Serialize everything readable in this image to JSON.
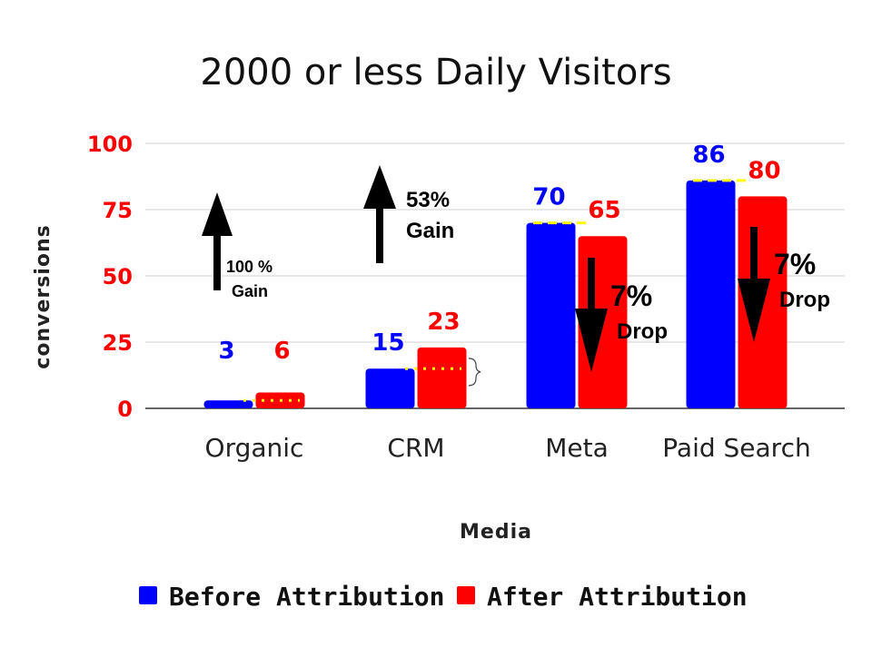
{
  "chart_data": {
    "type": "bar",
    "title": "2000 or less Daily Visitors",
    "xlabel": "Media",
    "ylabel": "conversions",
    "categories": [
      "Organic",
      "CRM",
      "Meta",
      "Paid Search"
    ],
    "series": [
      {
        "name": "Before Attribution",
        "color": "#0000ff",
        "values": [
          3,
          15,
          70,
          86
        ]
      },
      {
        "name": "After Attribution",
        "color": "#ff0000",
        "values": [
          6,
          23,
          65,
          80
        ]
      }
    ],
    "ylim": [
      0,
      100
    ],
    "yticks": [
      0,
      25,
      50,
      75,
      100
    ],
    "grid": true,
    "legend_position": "bottom",
    "annotations": [
      {
        "category": "Organic",
        "direction": "up",
        "line1": "100 %",
        "line2": "Gain"
      },
      {
        "category": "CRM",
        "direction": "up",
        "line1": "53%",
        "line2": "Gain"
      },
      {
        "category": "Meta",
        "direction": "down",
        "line1": "7%",
        "line2": "Drop"
      },
      {
        "category": "Paid Search",
        "direction": "down",
        "line1": "7%",
        "line2": "Drop"
      }
    ]
  }
}
